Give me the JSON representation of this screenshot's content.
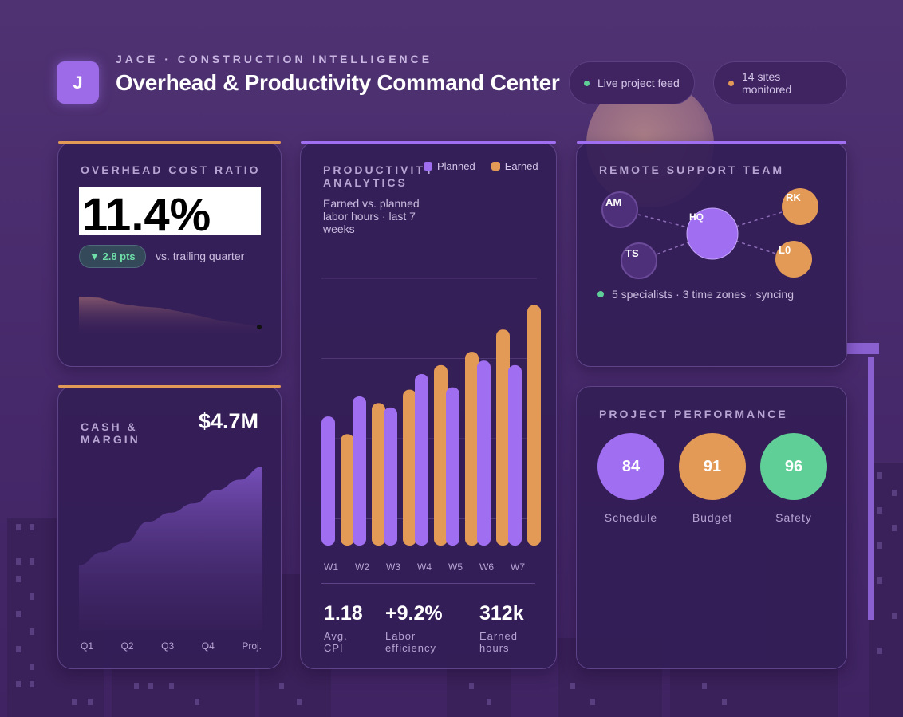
{
  "header": {
    "logo_letter": "J",
    "eyebrow": "JACE · CONSTRUCTION INTELLIGENCE",
    "title": "Overhead & Productivity Command Center",
    "pills": [
      {
        "label": "Live project feed",
        "dot_color": "#5fcf97"
      },
      {
        "label": "14 sites monitored",
        "dot_color": "#e39a56"
      }
    ]
  },
  "overhead": {
    "title": "OVERHEAD COST RATIO",
    "value": "11.4%",
    "delta": "▼ 2.8 pts",
    "delta_caption": "vs. trailing quarter",
    "trend": [
      0.78,
      0.76,
      0.64,
      0.58,
      0.55,
      0.47,
      0.38,
      0.28,
      0.22,
      0.15
    ]
  },
  "cash": {
    "title": "CASH & MARGIN",
    "value": "$4.7M",
    "x_labels": [
      "Q1",
      "Q2",
      "Q3",
      "Q4",
      "Proj."
    ],
    "trend": [
      0.25,
      0.35,
      0.42,
      0.58,
      0.65,
      0.72,
      0.82,
      0.9,
      1.0
    ]
  },
  "productivity": {
    "title": "PRODUCTIVITY ANALYTICS",
    "subtitle": "Earned vs. planned labor hours · last 7 weeks",
    "legend": {
      "planned": "Planned",
      "earned": "Earned"
    },
    "stats": [
      {
        "value": "1.18",
        "label": "Avg. CPI"
      },
      {
        "value": "+9.2%",
        "label": "Labor efficiency"
      },
      {
        "value": "312k",
        "label": "Earned hours"
      }
    ]
  },
  "chart_data": {
    "type": "bar",
    "categories": [
      "W1",
      "W2",
      "W3",
      "W4",
      "W5",
      "W6",
      "W7"
    ],
    "series": [
      {
        "name": "Planned",
        "values": [
          58,
          67,
          62,
          77,
          71,
          83,
          81
        ]
      },
      {
        "name": "Earned",
        "values": [
          50,
          64,
          70,
          81,
          87,
          97,
          108
        ]
      }
    ],
    "ylim": [
      0,
      120
    ],
    "grid": true,
    "legend": "top-right",
    "colors": {
      "planned": "#a06ef0",
      "earned": "#e39a56"
    }
  },
  "team": {
    "title": "REMOTE SUPPORT TEAM",
    "nodes": [
      "AM",
      "HQ",
      "RK",
      "TS",
      "L0"
    ],
    "status": "5 specialists · 3 time zones · syncing",
    "status_dot": "#5fcf97"
  },
  "performance": {
    "title": "PROJECT PERFORMANCE",
    "scores": [
      {
        "value": "84",
        "label": "Schedule",
        "color": "#a06ef0"
      },
      {
        "value": "91",
        "label": "Budget",
        "color": "#e39a56"
      },
      {
        "value": "96",
        "label": "Safety",
        "color": "#5fcf97"
      }
    ]
  }
}
